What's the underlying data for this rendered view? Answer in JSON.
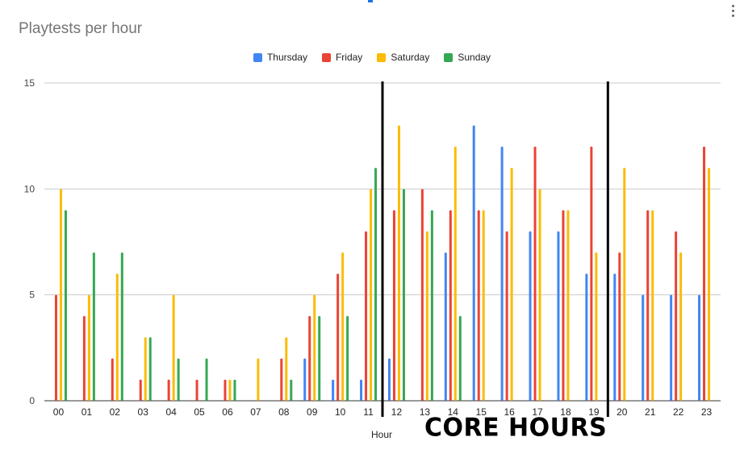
{
  "chart_data": {
    "type": "bar",
    "title": "Playtests per hour",
    "xlabel": "Hour",
    "ylabel": "",
    "ylim": [
      0,
      15
    ],
    "yticks": [
      0,
      5,
      10,
      15
    ],
    "grid": true,
    "legend_position": "top",
    "categories": [
      "00",
      "01",
      "02",
      "03",
      "04",
      "05",
      "06",
      "07",
      "08",
      "09",
      "10",
      "11",
      "12",
      "13",
      "14",
      "15",
      "16",
      "17",
      "18",
      "19",
      "20",
      "21",
      "22",
      "23"
    ],
    "series": [
      {
        "name": "Thursday",
        "color": "#4285f4",
        "values": [
          0,
          0,
          0,
          0,
          0,
          0,
          0,
          0,
          0,
          2,
          1,
          1,
          2,
          0,
          7,
          13,
          12,
          8,
          8,
          6,
          6,
          5,
          5,
          5
        ]
      },
      {
        "name": "Friday",
        "color": "#ea4335",
        "values": [
          5,
          4,
          2,
          1,
          1,
          1,
          1,
          0,
          2,
          4,
          6,
          8,
          9,
          10,
          9,
          9,
          8,
          12,
          9,
          12,
          7,
          9,
          8,
          12
        ]
      },
      {
        "name": "Saturday",
        "color": "#fbbc04",
        "values": [
          10,
          5,
          6,
          3,
          5,
          0,
          1,
          2,
          3,
          5,
          7,
          10,
          13,
          8,
          12,
          9,
          11,
          10,
          9,
          7,
          11,
          9,
          7,
          11
        ]
      },
      {
        "name": "Sunday",
        "color": "#34a853",
        "values": [
          9,
          7,
          7,
          3,
          2,
          2,
          1,
          0,
          1,
          4,
          4,
          11,
          10,
          9,
          4,
          0,
          0,
          0,
          0,
          0,
          0,
          0,
          0,
          0
        ]
      }
    ],
    "annotation": {
      "text": "CORE HOURS",
      "range": [
        "12",
        "19"
      ]
    }
  }
}
